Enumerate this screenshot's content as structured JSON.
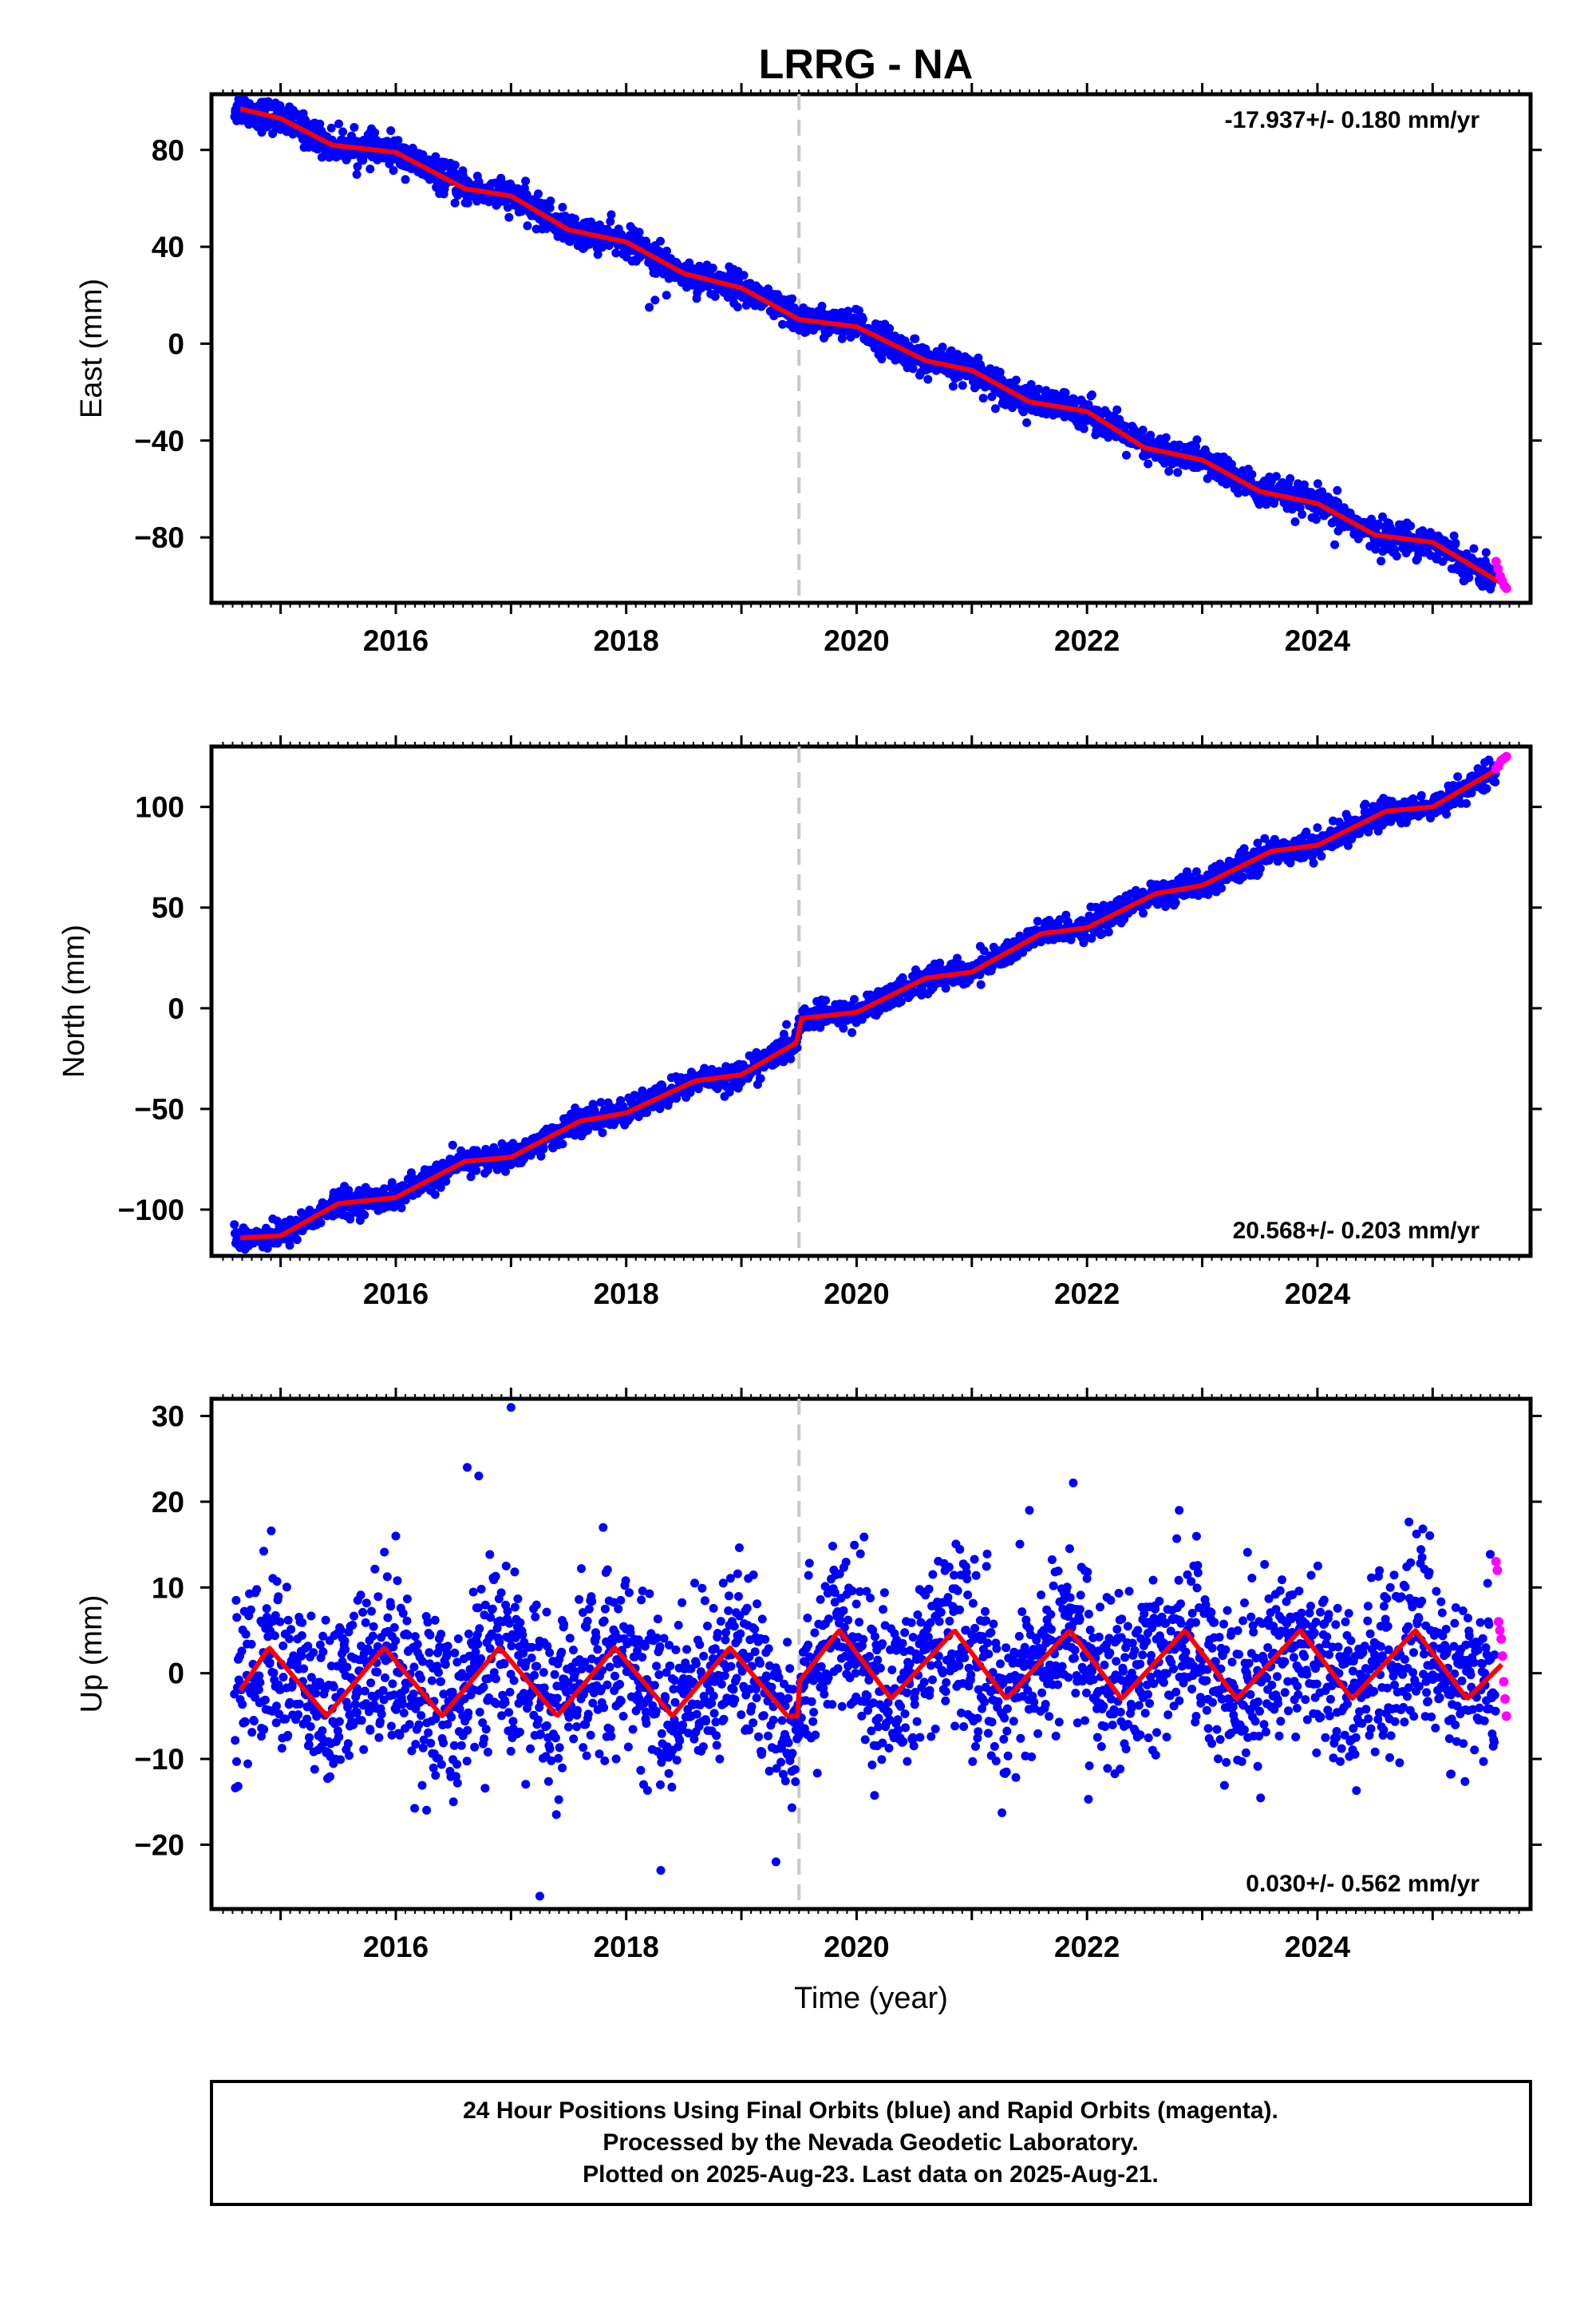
{
  "title": "LRRG - NA",
  "footer": {
    "line1": "24 Hour Positions Using Final Orbits (blue) and Rapid Orbits (magenta).",
    "line2": "Processed by the Nevada Geodetic Laboratory.",
    "line3": "Plotted on 2025-Aug-23. Last data on 2025-Aug-21."
  },
  "colors": {
    "final_orbits": "#0000ff",
    "rapid_orbits": "#ff00ff",
    "model_fit": "#ff0000",
    "equipment_change_line": "#c8c8c8",
    "frame": "#000000"
  },
  "chart_data": [
    {
      "type": "scatter",
      "name": "east",
      "ylabel": "East (mm)",
      "xlabel": "",
      "xlim": [
        2014.4,
        2025.85
      ],
      "ylim": [
        -107,
        103
      ],
      "xticks": [
        2016,
        2018,
        2020,
        2022,
        2024
      ],
      "xtick_labels": [
        "2016",
        "2018",
        "2020",
        "2022",
        "2024"
      ],
      "yticks": [
        80,
        40,
        0,
        -40,
        -80
      ],
      "ytick_labels": [
        "80",
        "40",
        "0",
        "−40",
        "−80"
      ],
      "rate_label": "-17.937+/- 0.180 mm/yr",
      "rate_position": "top-right",
      "grid": false,
      "break_line_x": 2019.5,
      "rate_mm_per_yr": -17.937,
      "fit_trend": {
        "x": [
          2014.65,
          2025.6
        ],
        "y": [
          97,
          -99
        ]
      },
      "fit_wiggle": [
        [
          2014.65,
          97
        ],
        [
          2015.0,
          93
        ],
        [
          2015.45,
          82
        ],
        [
          2016.0,
          79
        ],
        [
          2016.6,
          64
        ],
        [
          2017.0,
          61
        ],
        [
          2017.5,
          47
        ],
        [
          2018.0,
          42
        ],
        [
          2018.5,
          29
        ],
        [
          2019.0,
          23
        ],
        [
          2019.5,
          10
        ],
        [
          2020.0,
          7
        ],
        [
          2020.6,
          -7
        ],
        [
          2021.0,
          -11
        ],
        [
          2021.5,
          -24
        ],
        [
          2022.0,
          -28
        ],
        [
          2022.5,
          -43
        ],
        [
          2023.0,
          -48
        ],
        [
          2023.5,
          -61
        ],
        [
          2024.0,
          -66
        ],
        [
          2024.5,
          -79
        ],
        [
          2025.0,
          -82
        ],
        [
          2025.6,
          -99
        ]
      ],
      "series": [
        {
          "name": "Final Orbits",
          "color": "#0000ff",
          "x_range": [
            2014.6,
            2025.55
          ],
          "scatter_mm": 3.5,
          "points": 2400
        },
        {
          "name": "Rapid Orbits",
          "color": "#ff00ff",
          "x_range": [
            2025.55,
            2025.64
          ],
          "values": [
            -90,
            -93,
            -96,
            -98,
            -100,
            -101
          ]
        },
        {
          "name": "Model Fit",
          "color": "#ff0000",
          "type": "line"
        }
      ],
      "outliers": [
        [
          2018.2,
          15
        ],
        [
          2018.25,
          18
        ],
        [
          2018.35,
          20
        ],
        [
          2024.15,
          -83
        ]
      ]
    },
    {
      "type": "scatter",
      "name": "north",
      "ylabel": "North (mm)",
      "xlabel": "",
      "xlim": [
        2014.4,
        2025.85
      ],
      "ylim": [
        -123,
        130
      ],
      "xticks": [
        2016,
        2018,
        2020,
        2022,
        2024
      ],
      "xtick_labels": [
        "2016",
        "2018",
        "2020",
        "2022",
        "2024"
      ],
      "yticks": [
        100,
        50,
        0,
        -50,
        -100
      ],
      "ytick_labels": [
        "100",
        "50",
        "0",
        "−50",
        "−100"
      ],
      "rate_label": "20.568+/- 0.203 mm/yr",
      "rate_position": "bottom-right",
      "grid": false,
      "break_line_x": 2019.5,
      "rate_mm_per_yr": 20.568,
      "offset_at_break_mm": 12,
      "fit_wiggle": [
        [
          2014.65,
          -114
        ],
        [
          2015.0,
          -113
        ],
        [
          2015.5,
          -97
        ],
        [
          2016.0,
          -94
        ],
        [
          2016.6,
          -76
        ],
        [
          2017.0,
          -74
        ],
        [
          2017.6,
          -56
        ],
        [
          2018.0,
          -52
        ],
        [
          2018.6,
          -36
        ],
        [
          2019.0,
          -33
        ],
        [
          2019.48,
          -17
        ],
        [
          2019.52,
          -5
        ],
        [
          2020.0,
          -2
        ],
        [
          2020.6,
          15
        ],
        [
          2021.0,
          18
        ],
        [
          2021.6,
          37
        ],
        [
          2022.0,
          40
        ],
        [
          2022.6,
          57
        ],
        [
          2023.0,
          61
        ],
        [
          2023.6,
          78
        ],
        [
          2024.0,
          81
        ],
        [
          2024.6,
          98
        ],
        [
          2025.0,
          100
        ],
        [
          2025.6,
          120
        ]
      ],
      "series": [
        {
          "name": "Final Orbits",
          "color": "#0000ff",
          "x_range": [
            2014.6,
            2025.55
          ],
          "scatter_mm": 3.5,
          "points": 2400
        },
        {
          "name": "Rapid Orbits",
          "color": "#ff00ff",
          "x_range": [
            2025.55,
            2025.64
          ],
          "values": [
            119,
            121,
            123,
            124,
            125
          ]
        },
        {
          "name": "Model Fit",
          "color": "#ff0000",
          "type": "line"
        }
      ]
    },
    {
      "type": "scatter",
      "name": "up",
      "ylabel": "Up (mm)",
      "xlabel": "Time (year)",
      "xlim": [
        2014.4,
        2025.85
      ],
      "ylim": [
        -27.5,
        32
      ],
      "xticks": [
        2016,
        2018,
        2020,
        2022,
        2024
      ],
      "xtick_labels": [
        "2016",
        "2018",
        "2020",
        "2022",
        "2024"
      ],
      "yticks": [
        30,
        20,
        10,
        0,
        -10,
        -20
      ],
      "ytick_labels": [
        "30",
        "20",
        "10",
        "0",
        "−10",
        "−20"
      ],
      "rate_label": "0.030+/- 0.562 mm/yr",
      "rate_position": "bottom-right",
      "grid": false,
      "break_line_x": 2019.5,
      "rate_mm_per_yr": 0.03,
      "annual_amplitude_mm": 4,
      "fit_wiggle": [
        [
          2014.65,
          -2
        ],
        [
          2014.9,
          3
        ],
        [
          2015.4,
          -5
        ],
        [
          2015.9,
          3
        ],
        [
          2016.4,
          -5
        ],
        [
          2016.9,
          3
        ],
        [
          2017.4,
          -5
        ],
        [
          2017.9,
          3
        ],
        [
          2018.4,
          -5
        ],
        [
          2018.9,
          3
        ],
        [
          2019.4,
          -5
        ],
        [
          2019.49,
          -5
        ],
        [
          2019.5,
          -7
        ],
        [
          2019.5,
          -1
        ],
        [
          2019.85,
          5
        ],
        [
          2020.3,
          -3
        ],
        [
          2020.85,
          5
        ],
        [
          2021.3,
          -3
        ],
        [
          2021.85,
          5
        ],
        [
          2022.3,
          -3
        ],
        [
          2022.85,
          5
        ],
        [
          2023.3,
          -3
        ],
        [
          2023.85,
          5
        ],
        [
          2024.3,
          -3
        ],
        [
          2024.85,
          5
        ],
        [
          2025.3,
          -3
        ],
        [
          2025.6,
          1
        ]
      ],
      "series": [
        {
          "name": "Final Orbits",
          "color": "#0000ff",
          "x_range": [
            2014.6,
            2025.55
          ],
          "scatter_mm": 4.5,
          "points": 2600
        },
        {
          "name": "Rapid Orbits",
          "color": "#ff00ff",
          "x_range": [
            2025.55,
            2025.64
          ],
          "values": [
            13,
            12,
            6,
            5,
            4,
            2,
            -1,
            -3,
            -5
          ]
        },
        {
          "name": "Model Fit",
          "color": "#ff0000",
          "type": "line"
        }
      ],
      "outliers": [
        [
          2016.62,
          24
        ],
        [
          2016.72,
          23
        ],
        [
          2017.0,
          31
        ],
        [
          2017.25,
          -26
        ],
        [
          2018.3,
          -23
        ],
        [
          2019.3,
          -22
        ],
        [
          2016.5,
          -15
        ],
        [
          2016.0,
          16
        ],
        [
          2017.8,
          17
        ],
        [
          2021.5,
          19
        ],
        [
          2022.8,
          19
        ]
      ]
    }
  ]
}
